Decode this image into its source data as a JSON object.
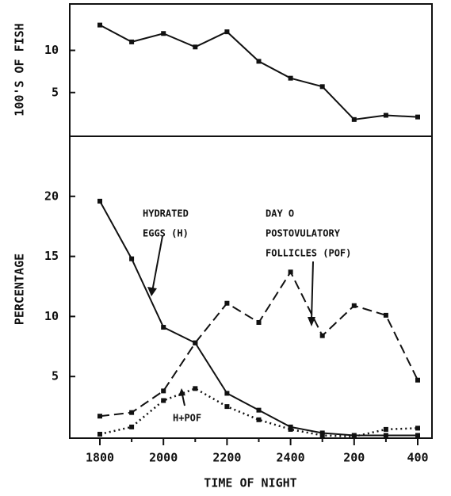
{
  "chart_data": [
    {
      "type": "line",
      "ylabel": "100'S OF FISH",
      "series": [
        {
          "color": "#111111",
          "style": "solid",
          "values": [
            13.0,
            11.0,
            12.0,
            10.4,
            12.2,
            8.7,
            6.7,
            5.7,
            1.8,
            2.3,
            2.1
          ]
        }
      ],
      "ylim": [
        0,
        15.5
      ],
      "yticks": [
        5,
        10
      ]
    },
    {
      "type": "line",
      "xlabel": "TIME OF NIGHT",
      "ylabel": "PERCENTAGE",
      "categories": [
        "1800",
        null,
        "2000",
        null,
        "2200",
        null,
        "2400",
        null,
        "200",
        null,
        "400"
      ],
      "series": [
        {
          "color": "#111111",
          "style": "solid",
          "values": [
            19.6,
            14.8,
            9.1,
            7.8,
            3.6,
            2.2,
            0.8,
            0.3,
            0.1,
            0.1,
            0.1
          ]
        },
        {
          "color": "#111111",
          "style": "dashed",
          "values": [
            1.7,
            2.0,
            3.8,
            7.8,
            11.1,
            9.5,
            13.7,
            8.4,
            10.9,
            10.1,
            4.7
          ]
        },
        {
          "color": "#111111",
          "style": "dotted",
          "values": [
            0.2,
            0.8,
            3.0,
            4.0,
            2.5,
            1.4,
            0.6,
            0.1,
            0.0,
            0.6,
            0.7
          ]
        }
      ],
      "annotations": [
        {
          "lines": [
            "HYDRATED",
            "EGGS (H)"
          ]
        },
        {
          "lines": [
            "DAY O",
            "POSTOVULATORY",
            "FOLLICLES (POF)"
          ]
        },
        {
          "lines": [
            "H+POF"
          ]
        }
      ],
      "ylim": [
        0,
        25
      ],
      "yticks": [
        5,
        10,
        15,
        20
      ]
    }
  ]
}
